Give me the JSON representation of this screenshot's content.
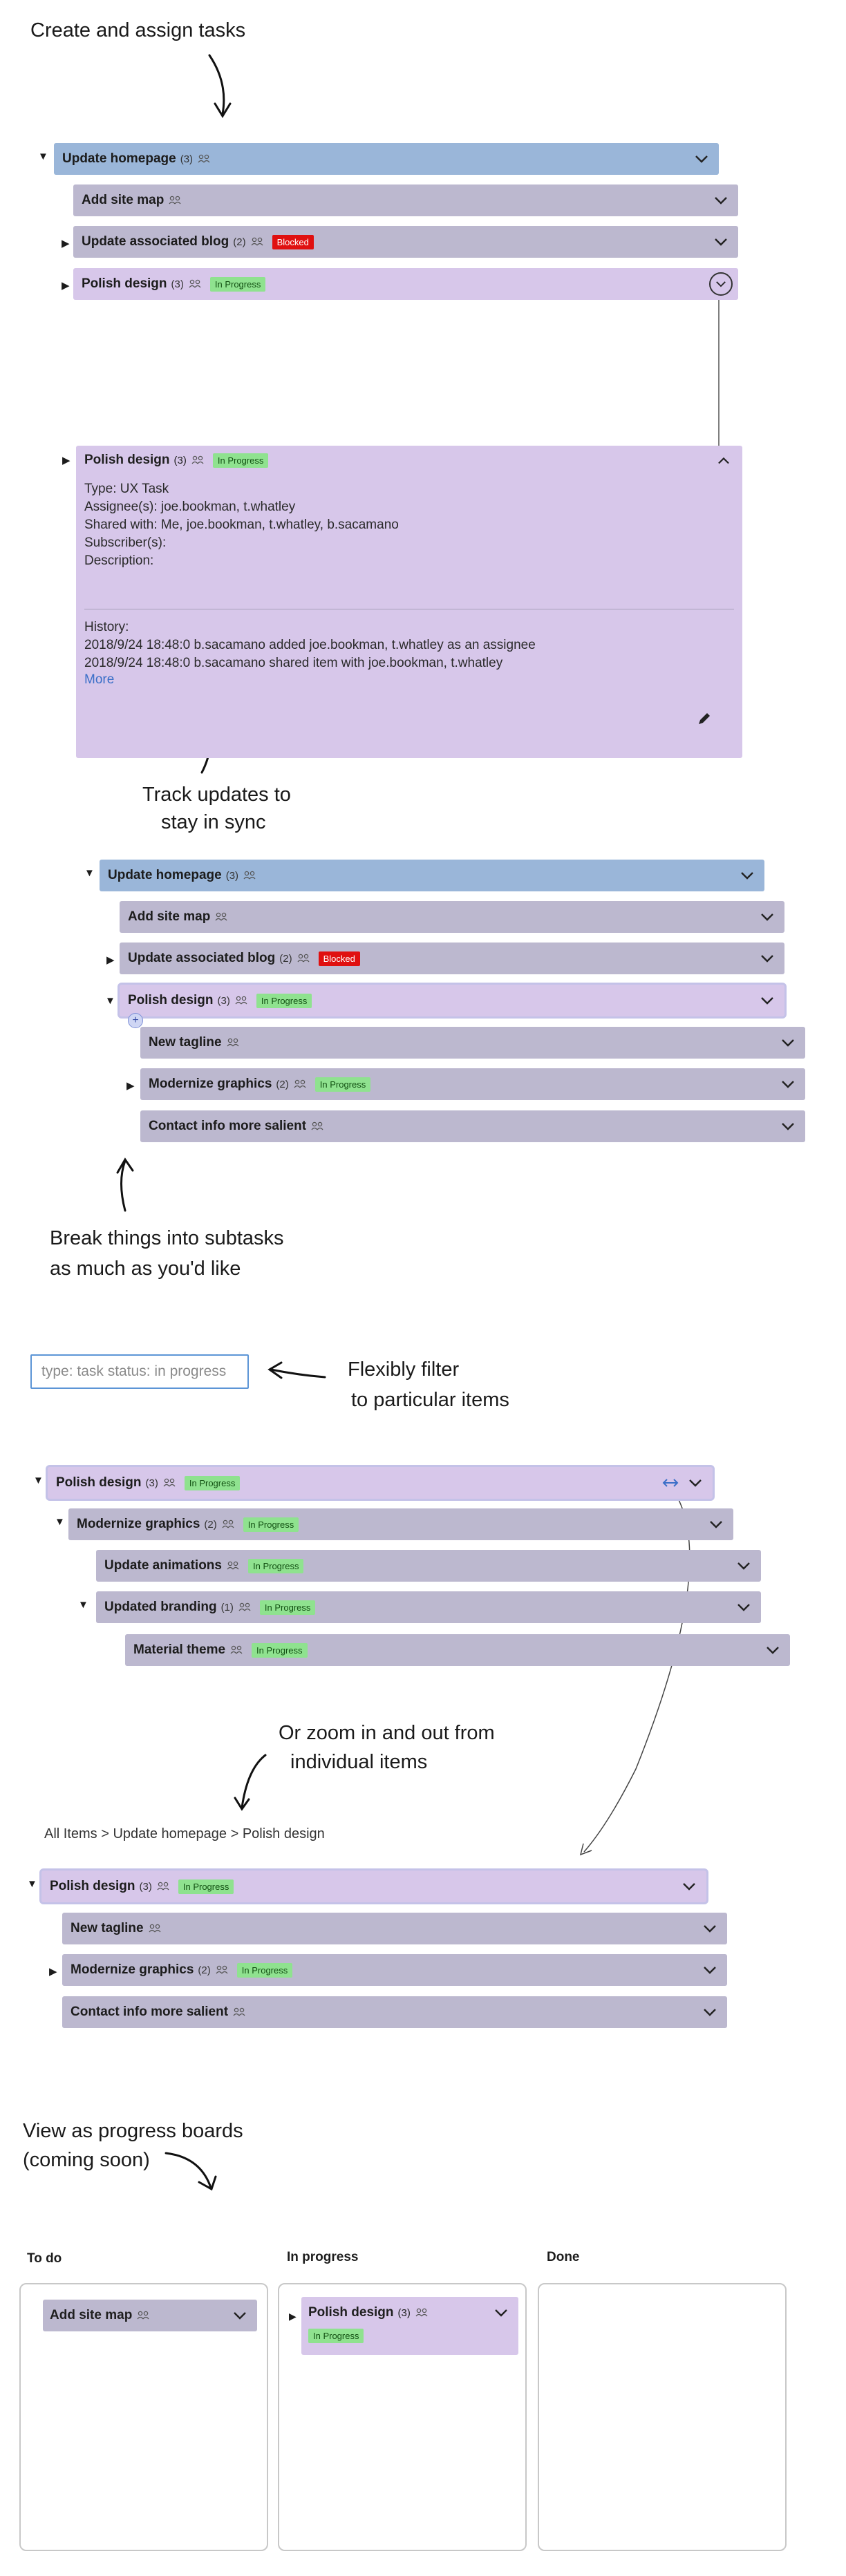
{
  "colors": {
    "blue_row": "#9ab6d9",
    "gray_row": "#bcb8cf",
    "purple_row": "#d7c7ea",
    "progress_badge": "#8fe28f",
    "blocked_badge": "#e01010",
    "link": "#3a6fc8"
  },
  "captions": {
    "create": "Create and assign tasks",
    "track_1": "Track updates to",
    "track_2": "stay in sync",
    "break_1": "Break things into subtasks",
    "break_2": "as much as you'd like",
    "filter_1": "Flexibly filter",
    "filter_2": "to particular items",
    "zoom_1": "Or zoom in and out from",
    "zoom_2": "individual items",
    "boards_1": "View as progress boards",
    "boards_2": "(coming soon)"
  },
  "badges": {
    "in_progress": "In Progress",
    "blocked": "Blocked"
  },
  "section1": {
    "parent": {
      "title": "Update homepage",
      "count": "(3)"
    },
    "children": [
      {
        "title": "Add site map",
        "count": ""
      },
      {
        "title": "Update associated blog",
        "count": "(2)"
      },
      {
        "title": "Polish design",
        "count": "(3)"
      }
    ]
  },
  "detail": {
    "title": "Polish design",
    "count": "(3)",
    "type": "Type: UX Task",
    "assignees": "Assignee(s): joe.bookman, t.whatley",
    "shared": "Shared with: Me, joe.bookman, t.whatley, b.sacamano",
    "subscribers": "Subscriber(s):",
    "description": "Description:",
    "history_label": "History:",
    "history": [
      "2018/9/24 18:48:0 b.sacamano added joe.bookman, t.whatley as an assignee",
      "2018/9/24 18:48:0 b.sacamano shared item with joe.bookman, t.whatley"
    ],
    "more": "More"
  },
  "section2": {
    "parent": {
      "title": "Update homepage",
      "count": "(3)"
    },
    "children": [
      {
        "title": "Add site map",
        "count": ""
      },
      {
        "title": "Update associated blog",
        "count": "(2)"
      },
      {
        "title": "Polish design",
        "count": "(3)"
      }
    ],
    "subtasks": [
      {
        "title": "New tagline",
        "count": ""
      },
      {
        "title": "Modernize graphics",
        "count": "(2)"
      },
      {
        "title": "Contact info more salient",
        "count": ""
      }
    ],
    "add_symbol": "+"
  },
  "filter": {
    "placeholder": "type: task status: in progress"
  },
  "section3": {
    "rows": [
      {
        "title": "Polish design",
        "count": "(3)"
      },
      {
        "title": "Modernize graphics",
        "count": "(2)"
      },
      {
        "title": "Update animations",
        "count": ""
      },
      {
        "title": "Updated branding",
        "count": "(1)"
      },
      {
        "title": "Material theme",
        "count": ""
      }
    ]
  },
  "breadcrumb": "All Items > Update homepage > Polish design",
  "section4": {
    "parent": {
      "title": "Polish design",
      "count": "(3)"
    },
    "children": [
      {
        "title": "New tagline",
        "count": ""
      },
      {
        "title": "Modernize graphics",
        "count": "(2)"
      },
      {
        "title": "Contact info more salient",
        "count": ""
      }
    ]
  },
  "board": {
    "columns": [
      {
        "title": "To do"
      },
      {
        "title": "In progress"
      },
      {
        "title": "Done"
      }
    ],
    "todo_card": {
      "title": "Add site map"
    },
    "progress_card": {
      "title": "Polish design",
      "count": "(3)"
    }
  }
}
